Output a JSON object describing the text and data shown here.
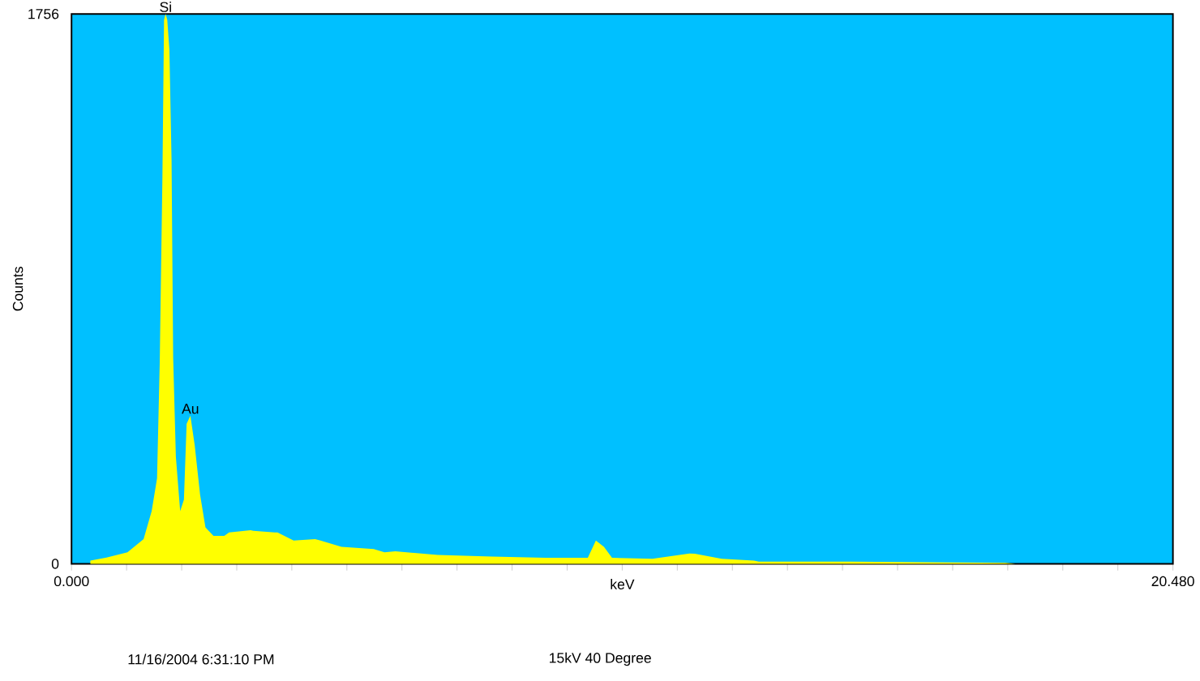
{
  "chart_data": {
    "type": "area",
    "xlabel": "keV",
    "ylabel": "Counts",
    "color": "#ffff00",
    "x": [
      0.35,
      0.65,
      1.04,
      1.34,
      1.49,
      1.59,
      1.64,
      1.69,
      1.72,
      1.75,
      1.78,
      1.82,
      1.86,
      1.89,
      1.94,
      2.02,
      2.09,
      2.14,
      2.21,
      2.29,
      2.39,
      2.49,
      2.64,
      2.84,
      2.93,
      3.33,
      3.38,
      3.78,
      3.83,
      4.13,
      4.53,
      4.63,
      5.02,
      5.62,
      5.82,
      6.02,
      6.81,
      7.81,
      8.81,
      9.6,
      9.75,
      9.9,
      10.05,
      10.8,
      11.49,
      11.59,
      12.09,
      12.69,
      12.78,
      14.48,
      17.36,
      17.55,
      20.48
    ],
    "values": [
      10,
      20,
      37,
      79,
      168,
      273,
      642,
      1236,
      1737,
      1756,
      1737,
      1641,
      1289,
      658,
      342,
      168,
      205,
      447,
      473,
      379,
      221,
      116,
      89,
      89,
      100,
      107,
      105,
      100,
      100,
      74,
      79,
      74,
      54,
      47,
      37,
      40,
      28,
      23,
      19,
      19,
      74,
      54,
      19,
      16,
      33,
      32,
      16,
      10,
      7,
      7,
      3,
      0,
      0
    ],
    "xlim": [
      0,
      20.48
    ],
    "ylim": [
      0,
      1756
    ],
    "xticks": [
      {
        "value": 0,
        "label": "0.000"
      },
      {
        "value": 1.024,
        "label": null
      },
      {
        "value": 2.048,
        "label": null
      },
      {
        "value": 3.072,
        "label": null
      },
      {
        "value": 4.096,
        "label": null
      },
      {
        "value": 5.12,
        "label": null
      },
      {
        "value": 6.144,
        "label": null
      },
      {
        "value": 7.168,
        "label": null
      },
      {
        "value": 8.192,
        "label": null
      },
      {
        "value": 9.216,
        "label": null
      },
      {
        "value": 10.24,
        "label": null
      },
      {
        "value": 11.264,
        "label": null
      },
      {
        "value": 12.288,
        "label": null
      },
      {
        "value": 13.312,
        "label": null
      },
      {
        "value": 14.336,
        "label": null
      },
      {
        "value": 15.36,
        "label": null
      },
      {
        "value": 16.384,
        "label": null
      },
      {
        "value": 17.408,
        "label": null
      },
      {
        "value": 18.432,
        "label": null
      },
      {
        "value": 19.456,
        "label": null
      },
      {
        "value": 20.48,
        "label": "20.480"
      }
    ],
    "yticks": [
      0,
      1756
    ],
    "annotations": [
      {
        "text": "Si",
        "x": 1.75,
        "y": 1756
      },
      {
        "text": "Au",
        "x": 2.21,
        "y": 473
      },
      "11/16/2004 6:31:10 PM",
      "15kV 40 Degree"
    ]
  }
}
